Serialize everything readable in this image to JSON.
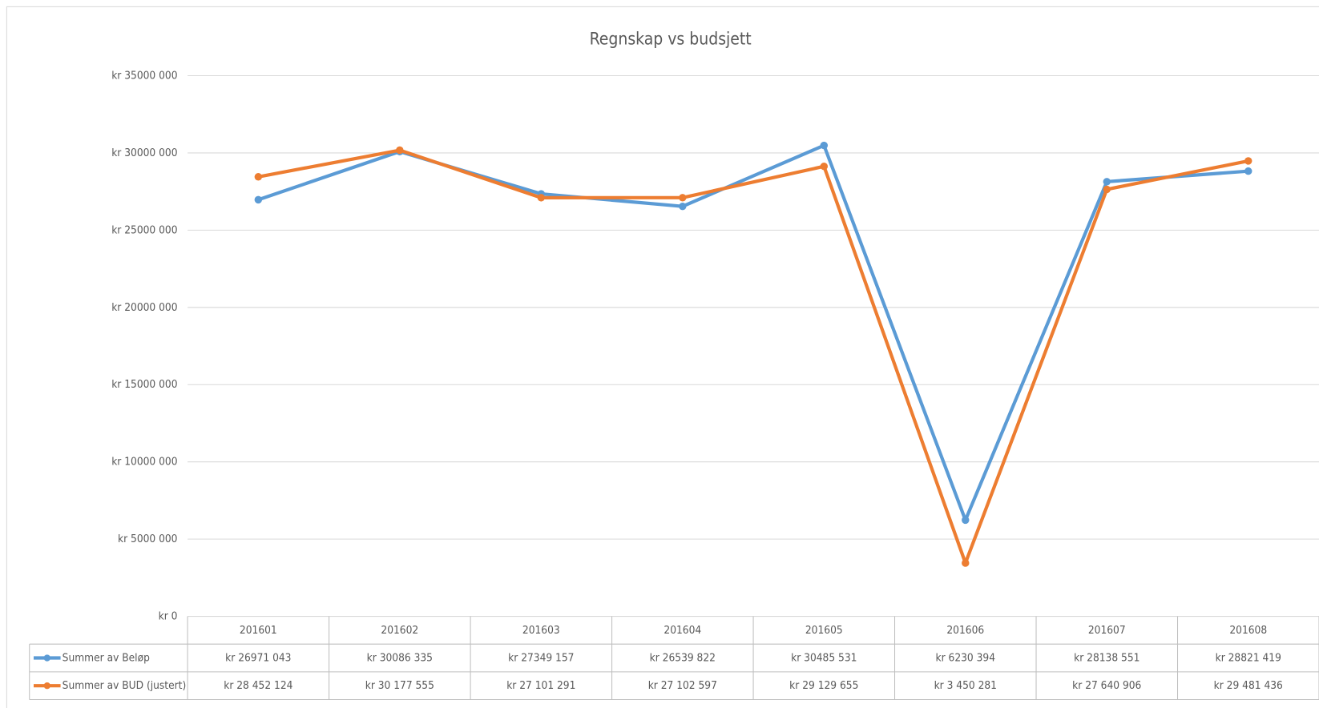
{
  "chart_data": {
    "type": "line",
    "title": "Regnskap vs budsjett",
    "categories": [
      "201601",
      "201602",
      "201603",
      "201604",
      "201605",
      "201606",
      "201607",
      "201608"
    ],
    "series": [
      {
        "name": "Summer av Beløp",
        "color": "#5b9bd5",
        "values": [
          26971043,
          30086335,
          27349157,
          26539822,
          30485531,
          6230394,
          28138551,
          28821419
        ],
        "value_labels": [
          "kr 26971 043",
          "kr 30086 335",
          "kr 27349 157",
          "kr 26539 822",
          "kr 30485 531",
          "kr 6230 394",
          "kr 28138 551",
          "kr 28821 419"
        ]
      },
      {
        "name": "Summer av BUD (justert)",
        "color": "#ed7d31",
        "values": [
          28452124,
          30177555,
          27101291,
          27102597,
          29129655,
          3450281,
          27640906,
          29481436
        ],
        "value_labels": [
          "kr 28 452 124",
          "kr 30 177 555",
          "kr 27 101 291",
          "kr 27 102 597",
          "kr 29 129 655",
          "kr 3 450 281",
          "kr 27 640 906",
          "kr 29 481 436"
        ]
      }
    ],
    "ylim": [
      0,
      35000000
    ],
    "yticks": [
      {
        "value": 0,
        "label": "kr 0"
      },
      {
        "value": 5000000,
        "label": "kr 5000 000"
      },
      {
        "value": 10000000,
        "label": "kr 10000 000"
      },
      {
        "value": 15000000,
        "label": "kr 15000 000"
      },
      {
        "value": 20000000,
        "label": "kr 20000 000"
      },
      {
        "value": 25000000,
        "label": "kr 25000 000"
      },
      {
        "value": 30000000,
        "label": "kr 30000 000"
      },
      {
        "value": 35000000,
        "label": "kr 35000 000"
      }
    ],
    "grid": true
  }
}
